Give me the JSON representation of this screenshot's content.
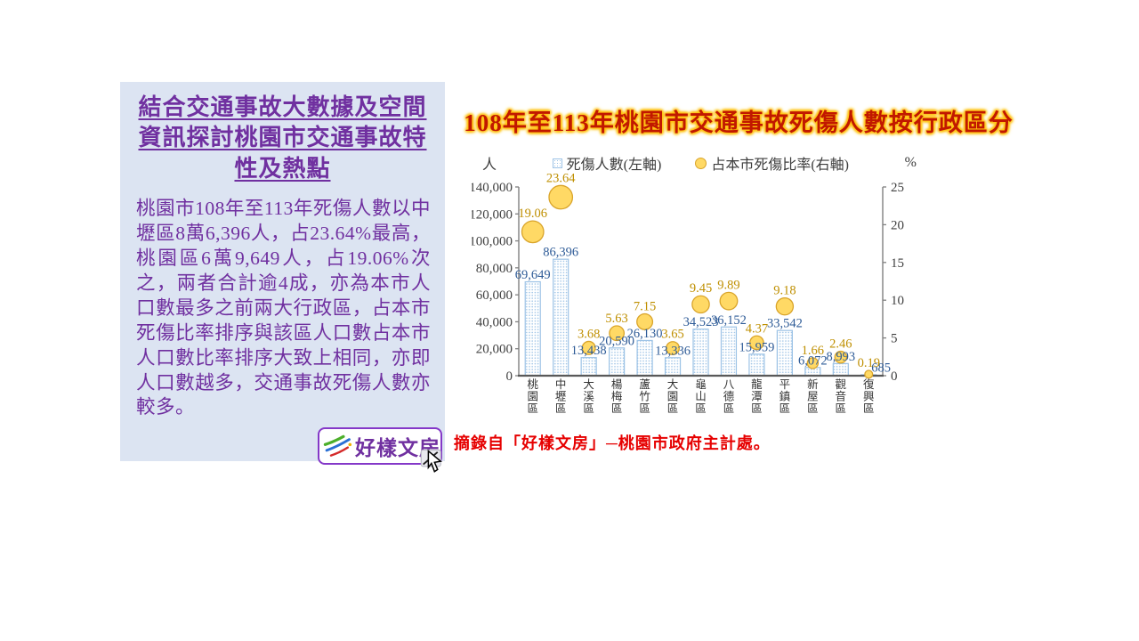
{
  "panel": {
    "title": "結合交通事故大數據及空間資訊探討桃園市交通事故特性及熱點",
    "body": "桃園市108年至113年死傷人數以中壢區8萬6,396人，占23.64%最高，桃園區6萬9,649人，占19.06%次之，兩者合計逾4成，亦為本市人口數最多之前兩大行政區，占本市死傷比率排序與該區人口數占本市人口數比率排序大致上相同，亦即人口數越多，交通事故死傷人數亦較多。",
    "logo_text": "好樣文房"
  },
  "chart_title": "108年至113年桃園市交通事故死傷人數按行政區分",
  "citation": "摘錄自「好樣文房」─桃園市政府主計處。",
  "colors": {
    "panel_background": "#dce4f2",
    "panel_text": "#7030a0",
    "chart_title_red": "#c11800",
    "chart_title_glow": "#ffc000",
    "citation_red": "#e60000"
  },
  "chart_data": {
    "type": "bar",
    "subtype": "combo bar + bubble (dual axis)",
    "title": "108年至113年桃園市交通事故死傷人數按行政區分",
    "categories": [
      "桃園區",
      "中壢區",
      "大溪區",
      "楊梅區",
      "蘆竹區",
      "大園區",
      "龜山區",
      "八德區",
      "龍潭區",
      "平鎮區",
      "新屋區",
      "觀音區",
      "復興區"
    ],
    "series": [
      {
        "name": "死傷人數(左軸)",
        "type": "bar",
        "axis": "left",
        "values": [
          69649,
          86396,
          13438,
          20590,
          26130,
          13336,
          34523,
          36152,
          15959,
          33542,
          6072,
          8993,
          685
        ],
        "labels": [
          "69,649",
          "86,396",
          "13,438",
          "20,590",
          "26,130",
          "13,336",
          "34,523",
          "36,152",
          "15,959",
          "33,542",
          "6,072",
          "8,993",
          "685"
        ]
      },
      {
        "name": "占本市死傷比率(右軸)",
        "type": "bubble",
        "axis": "right",
        "values": [
          19.06,
          23.64,
          3.68,
          5.63,
          7.15,
          3.65,
          9.45,
          9.89,
          4.37,
          9.18,
          1.66,
          2.46,
          0.19
        ],
        "labels": [
          "19.06",
          "23.64",
          "3.68",
          "5.63",
          "7.15",
          "3.65",
          "9.45",
          "9.89",
          "4.37",
          "9.18",
          "1.66",
          "2.46",
          "0.19"
        ]
      }
    ],
    "left_axis": {
      "unit": "人",
      "min": 0,
      "max": 140000,
      "step": 20000,
      "ticks": [
        "0",
        "20,000",
        "40,000",
        "60,000",
        "80,000",
        "100,000",
        "120,000",
        "140,000"
      ]
    },
    "right_axis": {
      "unit": "%",
      "min": 0,
      "max": 25,
      "step": 5,
      "ticks": [
        "0",
        "5",
        "10",
        "15",
        "20",
        "25"
      ]
    },
    "layout": {
      "legend_position": "top",
      "grid": false
    },
    "colors": {
      "bar_border": "#9dc3e6",
      "bar_fill_dot": "#9dc3e6",
      "bar_label": "#2e5b97",
      "bubble_fill": "#ffd965",
      "bubble_border": "#d9a42a",
      "bubble_label": "#bf8f00",
      "axis_line": "#808080",
      "baseline": "#595959",
      "tick_text": "#404040",
      "category_text": "#333333"
    }
  }
}
